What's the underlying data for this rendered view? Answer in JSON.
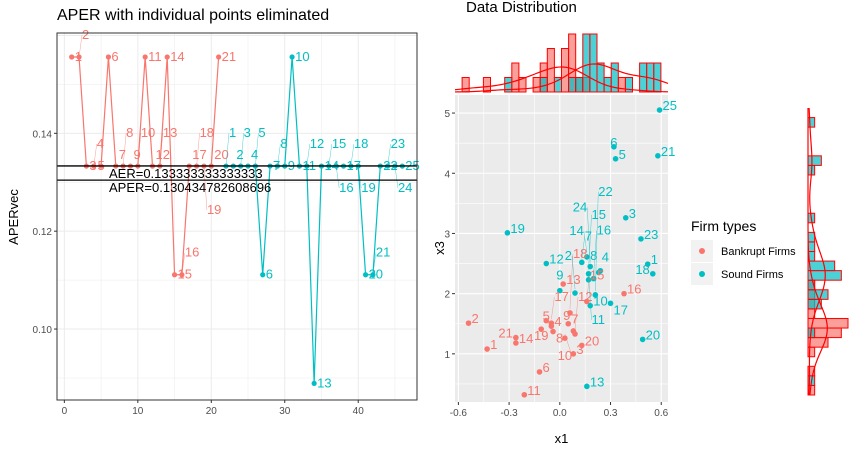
{
  "chart_data": [
    {
      "type": "line",
      "title": "APER with individual points eliminated",
      "xlabel": "",
      "ylabel": "APERvec",
      "xlim": [
        -1,
        48
      ],
      "ylim": [
        0.0855,
        0.1605
      ],
      "x_ticks": [
        0,
        10,
        20,
        30,
        40
      ],
      "y_ticks": [
        0.1,
        0.12,
        0.14
      ],
      "y_tick_labels": [
        "0.10",
        "0.12",
        "0.14"
      ],
      "grid": true,
      "series": [
        {
          "name": "Bankrupt Firms",
          "color": "#F8766D",
          "labels": [
            "1",
            "2",
            "3",
            "4",
            "5",
            "6",
            "7",
            "8",
            "9",
            "10",
            "11",
            "12",
            "13",
            "14",
            "15",
            "16",
            "17",
            "18",
            "19",
            "20",
            "21"
          ],
          "x": [
            1,
            2,
            3,
            4,
            5,
            6,
            7,
            8,
            9,
            10,
            11,
            12,
            13,
            14,
            15,
            16,
            17,
            18,
            19,
            20,
            21
          ],
          "values": [
            0.1556,
            0.1556,
            0.1333,
            0.1333,
            0.1333,
            0.1556,
            0.1333,
            0.1333,
            0.1333,
            0.1333,
            0.1556,
            0.1333,
            0.1333,
            0.1556,
            0.1111,
            0.1111,
            0.1333,
            0.1333,
            0.1333,
            0.1333,
            0.1556
          ]
        },
        {
          "name": "Sound Firms",
          "color": "#00BFC4",
          "labels": [
            "1",
            "2",
            "3",
            "4",
            "5",
            "6",
            "7",
            "8",
            "9",
            "10",
            "11",
            "12",
            "13",
            "14",
            "15",
            "16",
            "17",
            "18",
            "19",
            "20",
            "21",
            "22",
            "23",
            "24",
            "25"
          ],
          "x": [
            22,
            23,
            24,
            25,
            26,
            27,
            28,
            29,
            30,
            31,
            32,
            33,
            34,
            35,
            36,
            37,
            38,
            39,
            40,
            41,
            42,
            43,
            44,
            45,
            46
          ],
          "values": [
            0.1333,
            0.1333,
            0.1333,
            0.1333,
            0.1333,
            0.1111,
            0.1333,
            0.1333,
            0.1333,
            0.1556,
            0.1333,
            0.1333,
            0.0889,
            0.1333,
            0.1333,
            0.1333,
            0.1333,
            0.1333,
            0.1333,
            0.1111,
            0.1111,
            0.1333,
            0.1333,
            0.1333,
            0.1333
          ]
        }
      ],
      "hlines": [
        {
          "value": 0.133333333333333,
          "label": "AER=0.133333333333333"
        },
        {
          "value": 0.130434782608696,
          "label": "APER=0.130434782608696"
        }
      ]
    },
    {
      "type": "scatter",
      "title": "Data Distribution",
      "xlabel": "x1",
      "ylabel": "x3",
      "xlim": [
        -0.62,
        0.64
      ],
      "ylim": [
        0.2,
        5.3
      ],
      "x_ticks": [
        -0.6,
        -0.3,
        0.0,
        0.3,
        0.6
      ],
      "x_tick_labels": [
        "-0.6",
        "-0.3",
        "0.0",
        "0.3",
        "0.6"
      ],
      "y_ticks": [
        1,
        2,
        3,
        4,
        5
      ],
      "grid": true,
      "legend": {
        "title": "Firm types",
        "position": "right",
        "entries": [
          "Bankrupt Firms",
          "Sound Firms"
        ]
      },
      "marginals": "histogram with density, top (x1) and right (x3)",
      "series": [
        {
          "name": "Bankrupt Firms",
          "color": "#F8766D",
          "labels": [
            "1",
            "2",
            "3",
            "4",
            "5",
            "6",
            "7",
            "8",
            "9",
            "10",
            "11",
            "12",
            "13",
            "14",
            "15",
            "16",
            "17",
            "18",
            "19",
            "20",
            "21"
          ],
          "x": [
            -0.43,
            -0.54,
            0.08,
            -0.05,
            -0.08,
            -0.12,
            0.05,
            -0.04,
            0.08,
            0.03,
            -0.21,
            0.09,
            0.02,
            -0.26,
            0.16,
            0.38,
            -0.05,
            0.06,
            -0.11,
            0.13,
            -0.26
          ],
          "y": [
            1.08,
            1.51,
            1.0,
            1.46,
            1.55,
            0.7,
            1.5,
            1.37,
            1.38,
            1.26,
            0.32,
            1.33,
            2.16,
            1.18,
            1.87,
            2.0,
            1.51,
            1.68,
            1.41,
            1.14,
            1.27
          ]
        },
        {
          "name": "Sound Firms",
          "color": "#00BFC4",
          "labels": [
            "1",
            "2",
            "3",
            "4",
            "5",
            "6",
            "7",
            "8",
            "9",
            "10",
            "11",
            "12",
            "13",
            "14",
            "15",
            "16",
            "17",
            "18",
            "19",
            "20",
            "21",
            "22",
            "23",
            "24",
            "25"
          ],
          "x": [
            0.52,
            0.09,
            0.39,
            0.23,
            0.33,
            0.32,
            0.13,
            0.24,
            0.0,
            0.18,
            0.17,
            -0.08,
            0.16,
            0.16,
            0.17,
            0.2,
            0.3,
            0.55,
            -0.31,
            0.49,
            0.58,
            0.21,
            0.48,
            0.18,
            0.59
          ],
          "y": [
            2.49,
            2.01,
            3.26,
            2.35,
            4.24,
            4.44,
            2.52,
            2.38,
            2.05,
            1.8,
            2.23,
            2.5,
            0.46,
            2.61,
            2.33,
            2.25,
            1.84,
            2.33,
            3.01,
            1.24,
            4.29,
            1.98,
            2.91,
            2.45,
            5.05
          ]
        }
      ]
    }
  ]
}
